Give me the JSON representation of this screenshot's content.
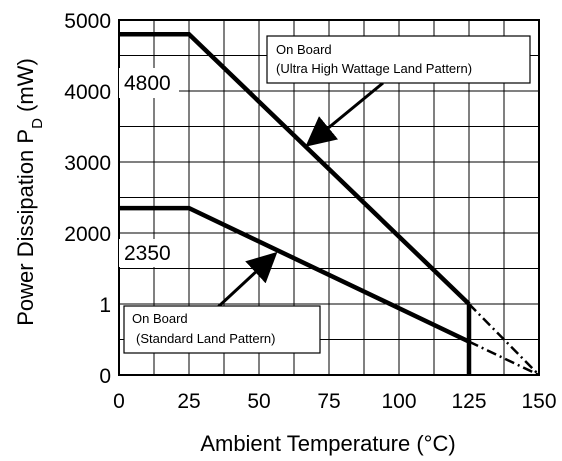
{
  "chart_data": {
    "type": "line",
    "xlabel": "Ambient Temperature (°C)",
    "ylabel": {
      "main": "Power Dissipation P",
      "sub": "D",
      "unit": " (mW)"
    },
    "x_ticks": [
      0,
      25,
      50,
      75,
      100,
      125,
      150
    ],
    "y_tick_labels": [
      "0",
      "1",
      "2000",
      "3000",
      "4000",
      "5000"
    ],
    "grid": true,
    "series": [
      {
        "name": "On Board (Ultra High Wattage Land Pattern)",
        "x": [
          0,
          25,
          125
        ],
        "y": [
          4800,
          4800,
          1000
        ],
        "extension": {
          "x": [
            125,
            150
          ],
          "y": [
            1000,
            0
          ]
        }
      },
      {
        "name": "On Board (Standard Land Pattern)",
        "x": [
          0,
          25,
          125
        ],
        "y": [
          2350,
          2350,
          470
        ],
        "extension": {
          "x": [
            125,
            150
          ],
          "y": [
            470,
            0
          ]
        }
      }
    ],
    "derating_cutoff": {
      "x": 125,
      "y_from": 1000,
      "y_to": 0
    },
    "value_labels": [
      "4800",
      "2350"
    ],
    "annotations": [
      {
        "line1": "On Board",
        "line2": "(Ultra High Wattage Land Pattern)"
      },
      {
        "line1": "On Board",
        "line2": "(Standard Land Pattern)"
      }
    ]
  }
}
